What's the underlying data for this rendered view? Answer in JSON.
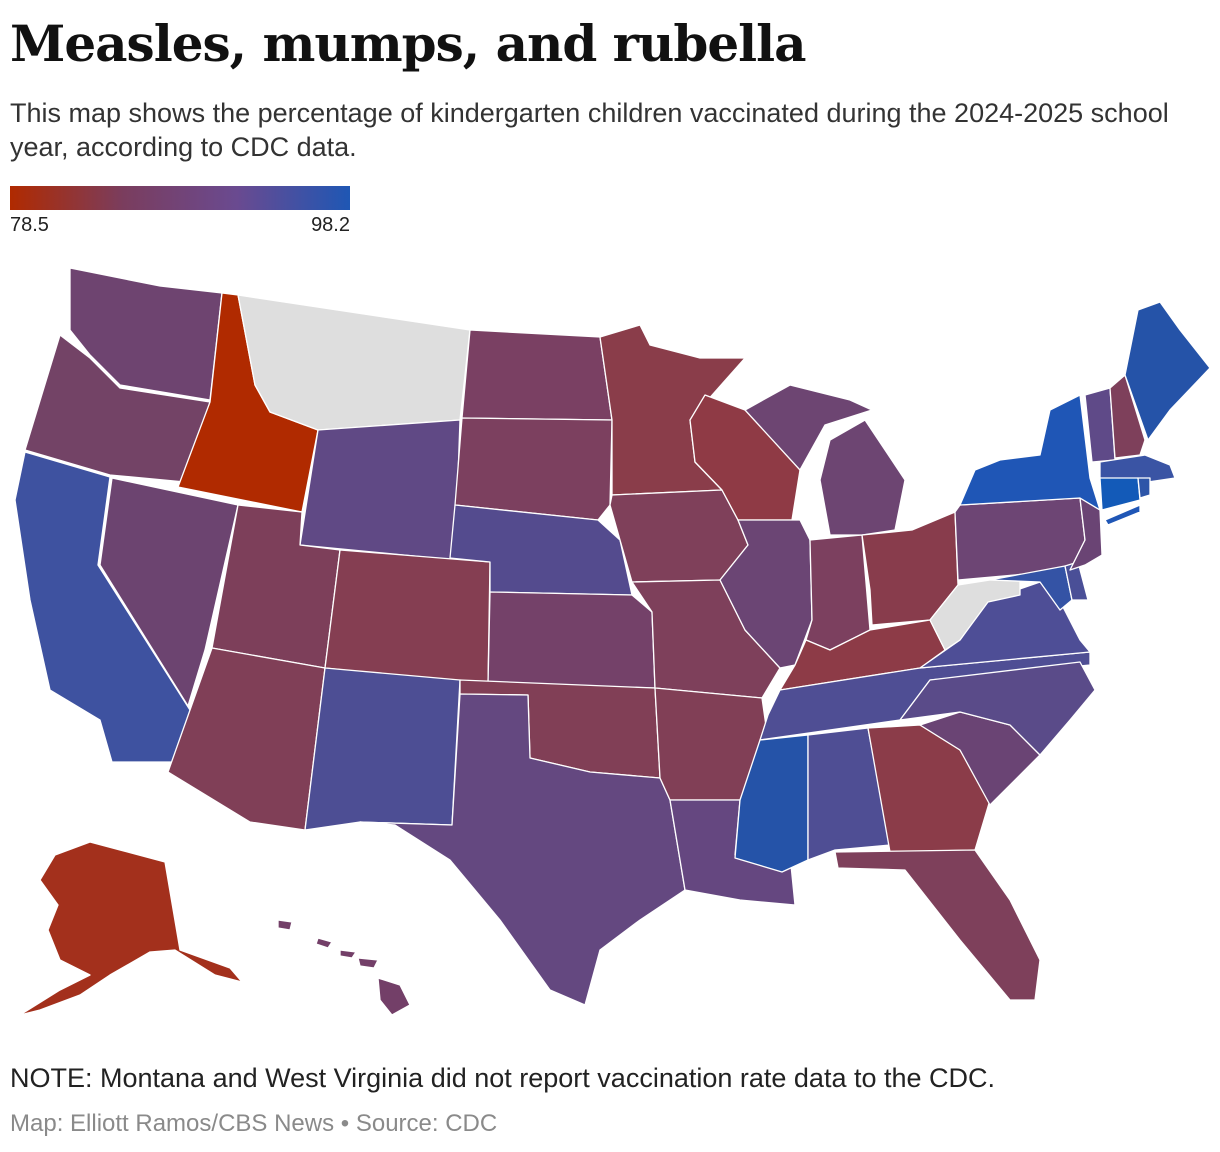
{
  "header": {
    "title": "Measles, mumps, and rubella",
    "subtitle": "This map shows the percentage of kindergarten children vaccinated during the 2024-2025 school year, according to CDC data."
  },
  "legend": {
    "min_label": "78.5",
    "max_label": "98.2",
    "low_color": "#b02a00",
    "high_color": "#1f57b4"
  },
  "map": {
    "no_data_color": "#dedede",
    "states": {
      "WA": "#6e4470",
      "OR": "#734366",
      "CA": "#3e52a0",
      "NV": "#6c4470",
      "ID": "#b02a00",
      "MT": "#dedede",
      "WY": "#604985",
      "UT": "#7d3f5a",
      "AZ": "#803f57",
      "CO": "#853e52",
      "NM": "#4d4e94",
      "ND": "#7a4063",
      "SD": "#7c405f",
      "NE": "#544b8e",
      "KS": "#744169",
      "OK": "#813f56",
      "TX": "#644880",
      "MN": "#8a3d4a",
      "IA": "#7f405a",
      "MO": "#7e405b",
      "AR": "#813f56",
      "LA": "#654780",
      "WI": "#8f3a45",
      "IL": "#6b4574",
      "IN": "#7c405f",
      "MI": "#6d4572",
      "OH": "#883c4c",
      "KY": "#8d3b47",
      "TN": "#4f4e94",
      "MS": "#2553a8",
      "AL": "#4f4e94",
      "GA": "#8b3c49",
      "FL": "#7e405b",
      "SC": "#6a4474",
      "NC": "#5a4b89",
      "VA": "#4e4e96",
      "WV": "#dedede",
      "PA": "#6d4574",
      "NY": "#1f56b6",
      "VT": "#5f4a88",
      "NH": "#7e405b",
      "ME": "#2553a8",
      "MA": "#3a54a4",
      "CT": "#135ab8",
      "RI": "#2d55a8",
      "NJ": "#6a4474",
      "DE": "#4a4f97",
      "MD": "#3453a5",
      "AK": "#a3301c",
      "HI": "#733f68"
    }
  },
  "footer": {
    "note": "NOTE: Montana and West Virginia did not report vaccination rate data to the CDC.",
    "credit": "Map: Elliott Ramos/CBS News • Source: CDC"
  }
}
